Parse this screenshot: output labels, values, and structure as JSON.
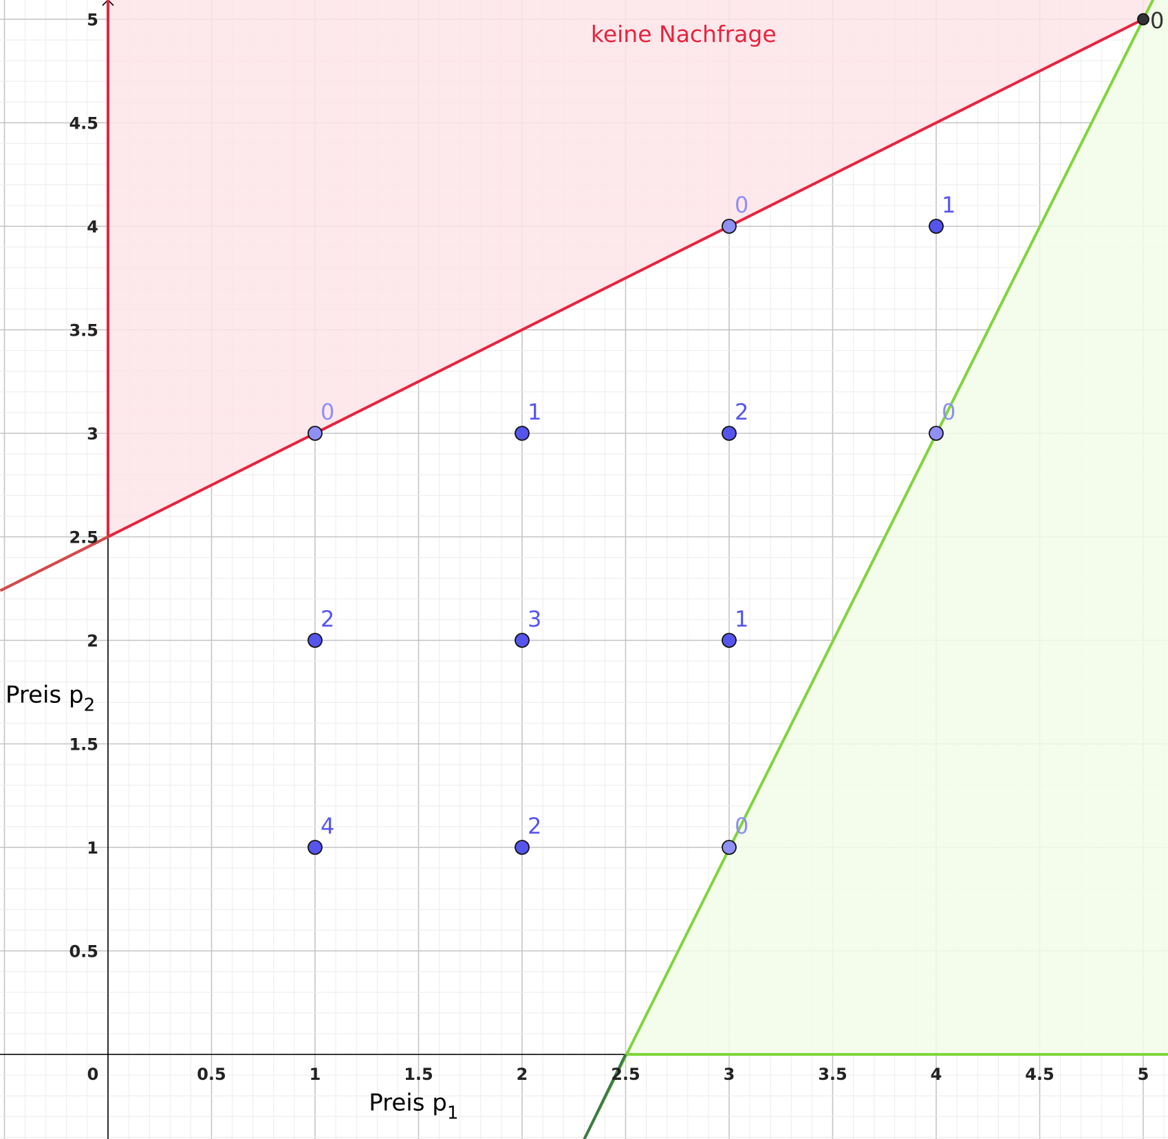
{
  "chart_data": {
    "type": "scatter",
    "title": "",
    "xlabel": {
      "base": "Preis p",
      "subscript": "1"
    },
    "ylabel": {
      "base": "Preis p",
      "subscript": "2"
    },
    "xlim": [
      -0.52,
      5.12
    ],
    "ylim": [
      -0.41,
      5.1
    ],
    "grid": true,
    "x_ticks": [
      {
        "value": 0,
        "label": "0"
      },
      {
        "value": 0.5,
        "label": "0.5"
      },
      {
        "value": 1,
        "label": "1"
      },
      {
        "value": 1.5,
        "label": "1.5"
      },
      {
        "value": 2,
        "label": "2"
      },
      {
        "value": 2.5,
        "label": "2.5"
      },
      {
        "value": 3,
        "label": "3"
      },
      {
        "value": 3.5,
        "label": "3.5"
      },
      {
        "value": 4,
        "label": "4"
      },
      {
        "value": 4.5,
        "label": "4.5"
      },
      {
        "value": 5,
        "label": "5"
      }
    ],
    "y_ticks": [
      {
        "value": 0.5,
        "label": "0.5"
      },
      {
        "value": 1,
        "label": "1"
      },
      {
        "value": 1.5,
        "label": "1.5"
      },
      {
        "value": 2,
        "label": "2"
      },
      {
        "value": 2.5,
        "label": "2.5"
      },
      {
        "value": 3,
        "label": "3"
      },
      {
        "value": 3.5,
        "label": "3.5"
      },
      {
        "value": 4,
        "label": "4"
      },
      {
        "value": 4.5,
        "label": "4.5"
      },
      {
        "value": 5,
        "label": "5"
      }
    ],
    "lines": [
      {
        "from": [
          -0.52,
          2.24
        ],
        "to": [
          5.0,
          5.0
        ],
        "color": "#e8233f",
        "description": "p2 = 2.5 + 0.5*p1"
      },
      {
        "from": [
          2.3,
          -0.41
        ],
        "to": [
          5.12,
          5.24
        ],
        "color": "#7ed63a",
        "description": "p2 = 2*p1 - 5"
      }
    ],
    "regions": [
      {
        "label": "keine Nachfrage",
        "color": "#e8233f",
        "fill": "#fde4e7",
        "polygon": [
          [
            0,
            2.5
          ],
          [
            5.0,
            5.0
          ],
          [
            5.12,
            5.12
          ],
          [
            0,
            5.12
          ]
        ]
      },
      {
        "label": "",
        "color": "#7ed63a",
        "fill": "#f2fbe8",
        "polygon": [
          [
            2.5,
            0
          ],
          [
            5.12,
            0
          ],
          [
            5.12,
            5.24
          ]
        ]
      }
    ],
    "points": [
      {
        "x": 1,
        "y": 3,
        "label": "0",
        "on_boundary": true
      },
      {
        "x": 2,
        "y": 3,
        "label": "1",
        "on_boundary": false
      },
      {
        "x": 3,
        "y": 3,
        "label": "2",
        "on_boundary": false
      },
      {
        "x": 4,
        "y": 3,
        "label": "0",
        "on_boundary": true
      },
      {
        "x": 3,
        "y": 4,
        "label": "0",
        "on_boundary": true
      },
      {
        "x": 4,
        "y": 4,
        "label": "1",
        "on_boundary": false
      },
      {
        "x": 1,
        "y": 2,
        "label": "2",
        "on_boundary": false
      },
      {
        "x": 2,
        "y": 2,
        "label": "3",
        "on_boundary": false
      },
      {
        "x": 3,
        "y": 2,
        "label": "1",
        "on_boundary": false
      },
      {
        "x": 1,
        "y": 1,
        "label": "4",
        "on_boundary": false
      },
      {
        "x": 2,
        "y": 1,
        "label": "2",
        "on_boundary": false
      },
      {
        "x": 3,
        "y": 1,
        "label": "0",
        "on_boundary": true
      },
      {
        "x": 5,
        "y": 5,
        "label": "0",
        "on_boundary": true,
        "corner": true
      }
    ],
    "colors": {
      "point_fill": "#5555ee",
      "point_fill_boundary": "#8f8ff5",
      "point_corner": "#333333",
      "point_label": "#5555ee",
      "point_label_boundary": "#8f8ff5",
      "region_label": "#e8233f"
    }
  }
}
